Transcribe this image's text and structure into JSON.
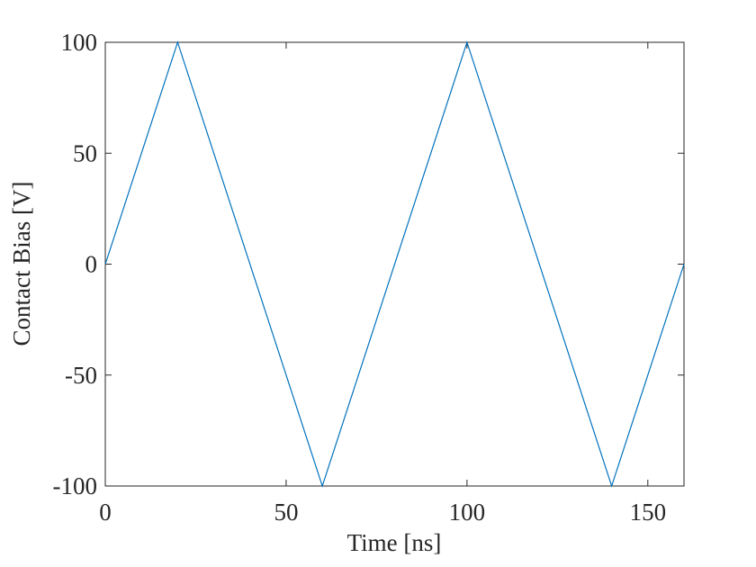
{
  "chart_data": {
    "type": "line",
    "x_label": "Time [ns]",
    "y_label": "Contact Bias [V]",
    "x": [
      0,
      20,
      60,
      100,
      140,
      160
    ],
    "series": [
      {
        "color": "#0072bd",
        "values": [
          0,
          100,
          -100,
          100,
          -100,
          0
        ]
      }
    ],
    "xlim": [
      0,
      160
    ],
    "xticks": [
      0,
      50,
      100,
      150
    ],
    "ylim": [
      -100,
      100
    ],
    "yticks": [
      -100,
      -50,
      0,
      50,
      100
    ],
    "grid": false
  }
}
